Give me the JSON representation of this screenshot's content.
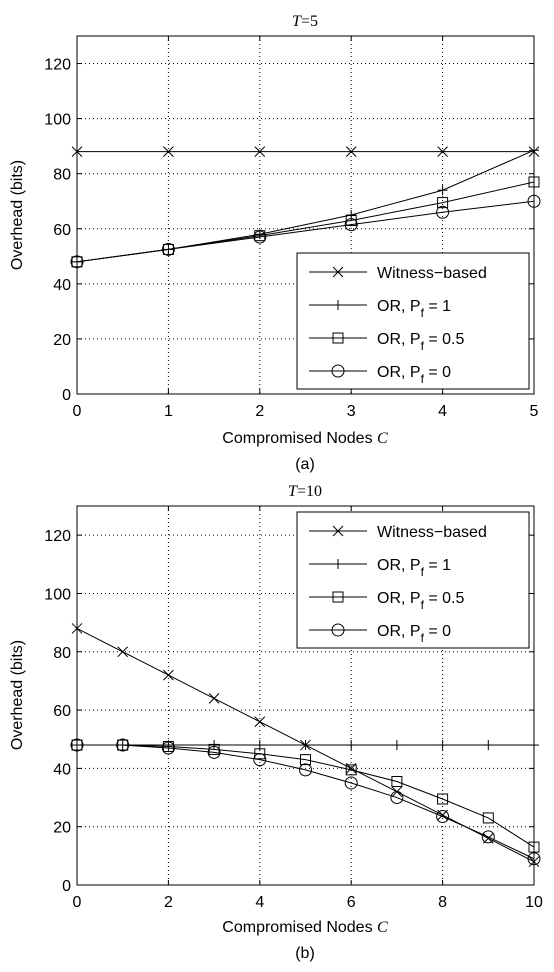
{
  "chart_data": [
    {
      "type": "line",
      "title": "T=5",
      "title_var": "T",
      "title_rest": "=5",
      "xlabel": "Compromised Nodes",
      "xlabel_var": "C",
      "ylabel": "Overhead (bits)",
      "caption": "(a)",
      "xlim": [
        0,
        5
      ],
      "ylim": [
        0,
        130
      ],
      "xticks": [
        0,
        1,
        2,
        3,
        4,
        5
      ],
      "yticks": [
        0,
        20,
        40,
        60,
        80,
        100,
        120
      ],
      "grid": true,
      "legend_position": "bottom-right",
      "series": [
        {
          "name": "Witness−based",
          "name_main": "Witness−based",
          "name_sub": "",
          "name_tail": "",
          "marker": "x",
          "x": [
            0,
            1,
            2,
            3,
            4,
            5
          ],
          "y": [
            88,
            88,
            88,
            88,
            88,
            88
          ]
        },
        {
          "name": "OR, Pf = 1",
          "name_main": "OR, P",
          "name_sub": "f",
          "name_tail": " = 1",
          "marker": "plus",
          "x": [
            0,
            1,
            2,
            3,
            4,
            5
          ],
          "y": [
            48,
            52.5,
            58,
            65,
            74,
            88.5
          ]
        },
        {
          "name": "OR, Pf = 0.5",
          "name_main": "OR, P",
          "name_sub": "f",
          "name_tail": " = 0.5",
          "marker": "square",
          "x": [
            0,
            1,
            2,
            3,
            4,
            5
          ],
          "y": [
            48,
            52.5,
            57.5,
            63,
            69.5,
            77
          ]
        },
        {
          "name": "OR, Pf = 0",
          "name_main": "OR, P",
          "name_sub": "f",
          "name_tail": " = 0",
          "marker": "circle",
          "x": [
            0,
            1,
            2,
            3,
            4,
            5
          ],
          "y": [
            48,
            52.5,
            57,
            61.5,
            66,
            70
          ]
        }
      ]
    },
    {
      "type": "line",
      "title": "T=10",
      "title_var": "T",
      "title_rest": "=10",
      "xlabel": "Compromised Nodes",
      "xlabel_var": "C",
      "ylabel": "Overhead (bits)",
      "caption": "(b)",
      "xlim": [
        0,
        10
      ],
      "ylim": [
        0,
        130
      ],
      "xticks": [
        0,
        2,
        4,
        6,
        8,
        10
      ],
      "yticks": [
        0,
        20,
        40,
        60,
        80,
        100,
        120
      ],
      "grid": true,
      "legend_position": "top-right",
      "series": [
        {
          "name": "Witness−based",
          "name_main": "Witness−based",
          "name_sub": "",
          "name_tail": "",
          "marker": "x",
          "x": [
            0,
            1,
            2,
            3,
            4,
            5,
            6,
            7,
            8,
            9,
            10
          ],
          "y": [
            88,
            80,
            72,
            64,
            56,
            48,
            40,
            32,
            24,
            16,
            8
          ]
        },
        {
          "name": "OR, Pf = 1",
          "name_main": "OR, P",
          "name_sub": "f",
          "name_tail": " = 1",
          "marker": "plus",
          "x": [
            0,
            1,
            2,
            3,
            4,
            5,
            6,
            7,
            8,
            9,
            10
          ],
          "y": [
            48,
            48,
            48,
            48,
            48,
            48,
            48,
            48,
            48,
            48,
            48
          ]
        },
        {
          "name": "OR, Pf = 0.5",
          "name_main": "OR, P",
          "name_sub": "f",
          "name_tail": " = 0.5",
          "marker": "square",
          "x": [
            0,
            1,
            2,
            3,
            4,
            5,
            6,
            7,
            8,
            9,
            10
          ],
          "y": [
            48,
            48,
            47.5,
            46.5,
            45,
            43,
            39.5,
            35.5,
            29.5,
            23,
            13
          ]
        },
        {
          "name": "OR, Pf = 0",
          "name_main": "OR, P",
          "name_sub": "f",
          "name_tail": " = 0",
          "marker": "circle",
          "x": [
            0,
            1,
            2,
            3,
            4,
            5,
            6,
            7,
            8,
            9,
            10
          ],
          "y": [
            48,
            48,
            47,
            45.5,
            43,
            39.5,
            35,
            30,
            23.5,
            16.5,
            9
          ]
        }
      ]
    }
  ]
}
